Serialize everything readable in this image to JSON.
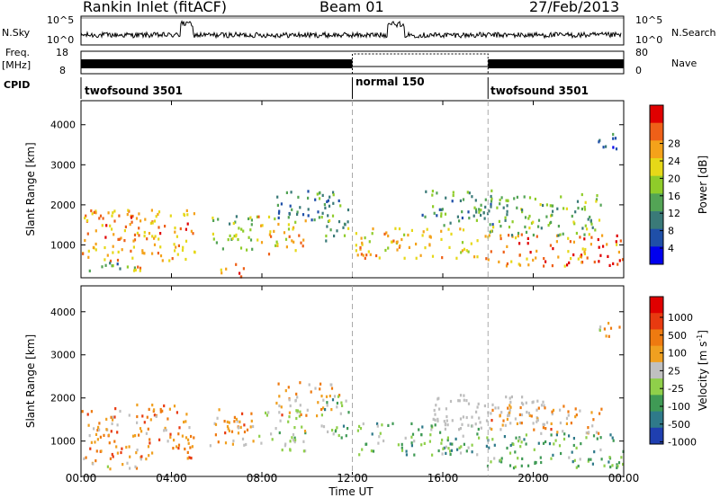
{
  "header": {
    "station": "Rankin Inlet (fitACF)",
    "beam": "Beam 01",
    "date": "27/Feb/2013"
  },
  "side_labels": {
    "nsky": "N.Sky",
    "nsearch": "N.Search",
    "freq": "Freq.",
    "freq_unit": "[MHz]",
    "nave": "Nave",
    "cpid": "CPID"
  },
  "noise_axis": {
    "left_ticks": [
      "10^5",
      "10^0"
    ],
    "right_ticks": [
      "10^5",
      "10^0"
    ]
  },
  "freq_axis": {
    "left_ticks": [
      "18",
      "8"
    ],
    "right_ticks": [
      "80",
      "0"
    ]
  },
  "cpid_modes": [
    {
      "name": "twofsound 3501",
      "start_h": 0,
      "end_h": 12
    },
    {
      "name": "normal 150",
      "start_h": 12,
      "end_h": 18
    },
    {
      "name": "twofsound 3501",
      "start_h": 18,
      "end_h": 24
    }
  ],
  "mode_change_times_h": [
    12,
    18
  ],
  "chart_data": [
    {
      "type": "heatmap",
      "title": "",
      "xlabel": "Time UT",
      "ylabel": "Slant Range [km]",
      "x_ticks": [
        "00:00",
        "04:00",
        "08:00",
        "12:00",
        "16:00",
        "20:00",
        "00:00"
      ],
      "xlim_h": [
        0,
        24
      ],
      "y_ticks": [
        1000,
        2000,
        3000,
        4000
      ],
      "ylim": [
        180,
        4600
      ],
      "colorbar": {
        "label": "Power [dB]",
        "ticks": [
          "4",
          "8",
          "12",
          "16",
          "20",
          "24",
          "28"
        ],
        "range": [
          0,
          30
        ],
        "colors": [
          "#0000ee",
          "#1f4fa8",
          "#3a7a78",
          "#53a455",
          "#8fcc2a",
          "#e6d818",
          "#f4a21a",
          "#ee6018",
          "#e00000"
        ]
      },
      "echo_regions": [
        {
          "t0": 0.0,
          "t1": 5.0,
          "r0": 600,
          "r1": 1900,
          "value": 22
        },
        {
          "t0": 0.2,
          "t1": 2.5,
          "r0": 350,
          "r1": 600,
          "value": 10
        },
        {
          "t0": 2.3,
          "t1": 3.5,
          "r0": 350,
          "r1": 520,
          "value": 22
        },
        {
          "t0": 5.6,
          "t1": 7.6,
          "r0": 900,
          "r1": 1800,
          "value": 14
        },
        {
          "t0": 6.0,
          "t1": 7.4,
          "r0": 220,
          "r1": 560,
          "value": 24
        },
        {
          "t0": 7.7,
          "t1": 9.9,
          "r0": 800,
          "r1": 1750,
          "value": 20
        },
        {
          "t0": 8.6,
          "t1": 11.4,
          "r0": 1600,
          "r1": 2400,
          "value": 9
        },
        {
          "t0": 10.6,
          "t1": 11.8,
          "r0": 1100,
          "r1": 2100,
          "value": 12
        },
        {
          "t0": 12.1,
          "t1": 17.6,
          "r0": 700,
          "r1": 1450,
          "value": 20
        },
        {
          "t0": 15.0,
          "t1": 18.2,
          "r0": 1500,
          "r1": 2400,
          "value": 10
        },
        {
          "t0": 17.8,
          "t1": 24.0,
          "r0": 500,
          "r1": 1300,
          "value": 24
        },
        {
          "t0": 18.0,
          "t1": 23.0,
          "r0": 1250,
          "r1": 2300,
          "value": 13
        },
        {
          "t0": 22.8,
          "t1": 23.8,
          "r0": 3400,
          "r1": 3800,
          "value": 8
        }
      ]
    },
    {
      "type": "heatmap",
      "title": "",
      "xlabel": "Time UT",
      "ylabel": "Slant Range [km]",
      "x_ticks": [
        "00:00",
        "04:00",
        "08:00",
        "12:00",
        "16:00",
        "20:00",
        "00:00"
      ],
      "xlim_h": [
        0,
        24
      ],
      "y_ticks": [
        1000,
        2000,
        3000,
        4000
      ],
      "ylim": [
        180,
        4600
      ],
      "colorbar": {
        "label": "Velocity [m s^-1]",
        "label_parts": [
          "Velocity  [m s",
          "-1",
          "]"
        ],
        "ticks": [
          "1000",
          "500",
          "100",
          "25",
          "-25",
          "-100",
          "-500",
          "-1000"
        ],
        "range": [
          -1200,
          1200
        ],
        "colors": [
          "#1f3fb0",
          "#2f7a8a",
          "#3f9a55",
          "#8fcf4a",
          "#c0c0c0",
          "#f0a020",
          "#ee7a10",
          "#e83a10",
          "#e00000"
        ]
      },
      "ground_scatter_color": "#bdbdbd",
      "echo_regions": [
        {
          "t0": 0.0,
          "t1": 5.0,
          "r0": 600,
          "r1": 1900,
          "value": 400
        },
        {
          "t0": 0.2,
          "t1": 2.5,
          "r0": 350,
          "r1": 600,
          "value": 150
        },
        {
          "t0": 5.6,
          "t1": 7.6,
          "r0": 900,
          "r1": 1800,
          "value": 300
        },
        {
          "t0": 7.7,
          "t1": 9.9,
          "r0": 800,
          "r1": 1750,
          "value": -150
        },
        {
          "t0": 8.6,
          "t1": 11.4,
          "r0": 1600,
          "r1": 2400,
          "value": 250
        },
        {
          "t0": 10.6,
          "t1": 11.8,
          "r0": 1100,
          "r1": 2100,
          "value": -300
        },
        {
          "t0": 12.1,
          "t1": 17.6,
          "r0": 700,
          "r1": 1450,
          "value": -400
        },
        {
          "t0": 15.5,
          "t1": 20.5,
          "r0": 1300,
          "r1": 2100,
          "value": 0,
          "ground": true
        },
        {
          "t0": 17.8,
          "t1": 24.0,
          "r0": 400,
          "r1": 1200,
          "value": -500
        },
        {
          "t0": 18.0,
          "t1": 23.0,
          "r0": 1200,
          "r1": 1900,
          "value": 300
        },
        {
          "t0": 22.8,
          "t1": 23.8,
          "r0": 3400,
          "r1": 3800,
          "value": 200
        }
      ]
    }
  ]
}
